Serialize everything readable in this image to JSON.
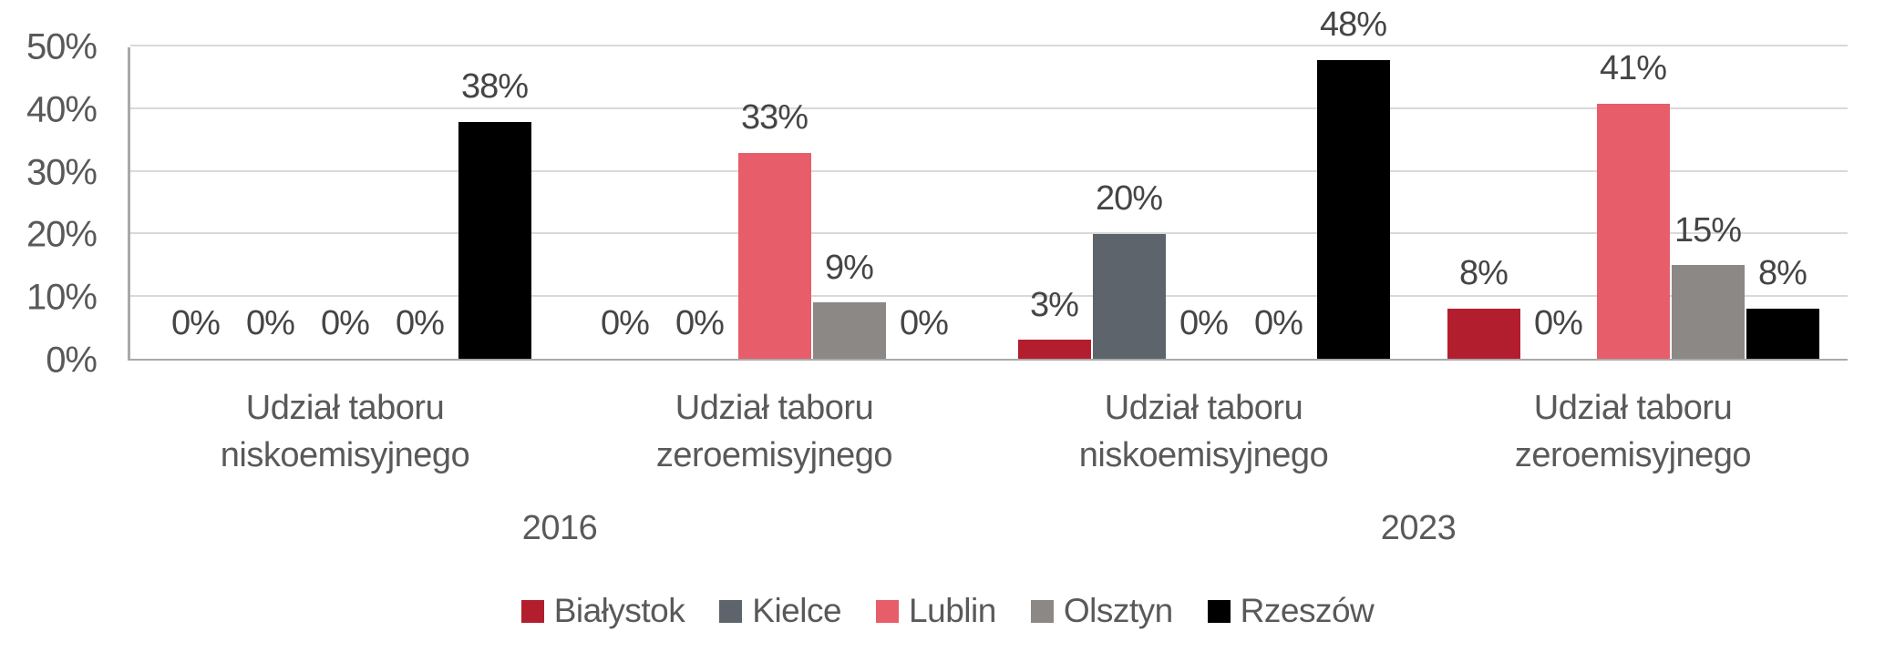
{
  "page": {
    "background": "#FFFFFF"
  },
  "chart_data": {
    "type": "bar",
    "title": "",
    "unit": "%",
    "grid": true,
    "legend_position": "bottom",
    "y_axis": {
      "min_pct": 0,
      "max_pct": 50,
      "ticks": [
        "0%",
        "10%",
        "20%",
        "30%",
        "40%",
        "50%"
      ]
    },
    "groups": [
      {
        "category_lines": [
          "Udział taboru",
          "niskoemisyjnego"
        ],
        "year": "2016"
      },
      {
        "category_lines": [
          "Udział taboru",
          "zeroemisyjnego"
        ],
        "year": "2016"
      },
      {
        "category_lines": [
          "Udział taboru",
          "niskoemisyjnego"
        ],
        "year": "2023"
      },
      {
        "category_lines": [
          "Udział taboru",
          "zeroemisyjnego"
        ],
        "year": "2023"
      }
    ],
    "year_labels": [
      "2016",
      "2023"
    ],
    "series": [
      {
        "name": "Białystok",
        "slug": "bialystok",
        "color": "#B31E2E",
        "values_pct": [
          0,
          0,
          3,
          8
        ]
      },
      {
        "name": "Kielce",
        "slug": "kielce",
        "color": "#5D646B",
        "values_pct": [
          0,
          0,
          20,
          0
        ]
      },
      {
        "name": "Lublin",
        "slug": "lublin",
        "color": "#E85D6A",
        "values_pct": [
          0,
          33,
          0,
          41
        ]
      },
      {
        "name": "Olsztyn",
        "slug": "olsztyn",
        "color": "#8C8886",
        "values_pct": [
          0,
          9,
          0,
          15
        ]
      },
      {
        "name": "Rzeszów",
        "slug": "rzeszow",
        "color": "#000000",
        "values_pct": [
          38,
          0,
          48,
          8
        ]
      }
    ],
    "data_label_format": "{v}%",
    "colors": {
      "gridline": "#D9D9D9",
      "axis_line": "#A9A9A9",
      "tick_text": "#595959",
      "category_text": "#595959",
      "data_label_text": "#454545",
      "legend_text": "#595959"
    }
  }
}
